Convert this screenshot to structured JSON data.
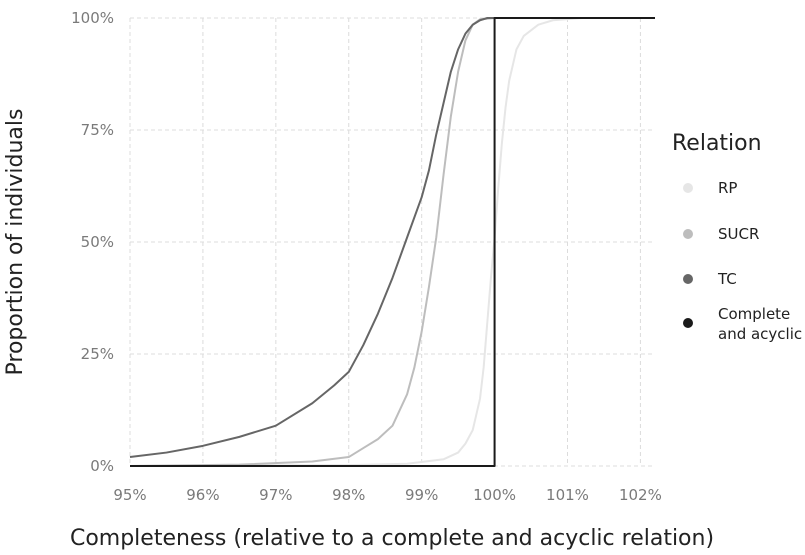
{
  "chart_data": {
    "type": "line",
    "title": "",
    "xlabel": "Completeness (relative to a complete and acyclic relation)",
    "ylabel": "Proportion of individuals",
    "xlim": [
      95,
      102.2
    ],
    "ylim": [
      0,
      100
    ],
    "x_ticks": [
      95,
      96,
      97,
      98,
      99,
      100,
      101,
      102
    ],
    "x_tick_labels": [
      "95%",
      "96%",
      "97%",
      "98%",
      "99%",
      "100%",
      "101%",
      "102%"
    ],
    "y_ticks": [
      0,
      25,
      50,
      75,
      100
    ],
    "y_tick_labels": [
      "0%",
      "25%",
      "50%",
      "75%",
      "100%"
    ],
    "grid": true,
    "legend": {
      "title": "Relation",
      "placement": "right",
      "entries": [
        {
          "label_lines": [
            "RP"
          ],
          "color": "#e6e6e6"
        },
        {
          "label_lines": [
            "SUCR"
          ],
          "color": "#bdbdbd"
        },
        {
          "label_lines": [
            "TC"
          ],
          "color": "#666666"
        },
        {
          "label_lines": [
            "Complete",
            "and acyclic"
          ],
          "color": "#1a1a1a"
        }
      ]
    },
    "series": [
      {
        "key": "RP",
        "color": "#e6e6e6",
        "points": [
          [
            95,
            0
          ],
          [
            98,
            0.2
          ],
          [
            98.8,
            0.5
          ],
          [
            99.3,
            1.5
          ],
          [
            99.5,
            3
          ],
          [
            99.6,
            5
          ],
          [
            99.7,
            8
          ],
          [
            99.8,
            15
          ],
          [
            99.85,
            22
          ],
          [
            99.9,
            32
          ],
          [
            99.95,
            42
          ],
          [
            100,
            51
          ],
          [
            100.05,
            62
          ],
          [
            100.1,
            72
          ],
          [
            100.15,
            80
          ],
          [
            100.2,
            86
          ],
          [
            100.3,
            93
          ],
          [
            100.4,
            96
          ],
          [
            100.6,
            98.5
          ],
          [
            100.8,
            99.5
          ],
          [
            101.2,
            100
          ],
          [
            102.2,
            100
          ]
        ]
      },
      {
        "key": "SUCR",
        "color": "#bdbdbd",
        "points": [
          [
            95,
            0
          ],
          [
            96.5,
            0.3
          ],
          [
            97.5,
            1
          ],
          [
            98,
            2
          ],
          [
            98.2,
            4
          ],
          [
            98.4,
            6
          ],
          [
            98.6,
            9
          ],
          [
            98.8,
            16
          ],
          [
            98.9,
            22
          ],
          [
            99,
            30
          ],
          [
            99.1,
            40
          ],
          [
            99.2,
            51
          ],
          [
            99.3,
            65
          ],
          [
            99.4,
            78
          ],
          [
            99.5,
            88
          ],
          [
            99.6,
            95
          ],
          [
            99.7,
            98.5
          ],
          [
            99.8,
            99.7
          ],
          [
            100,
            100
          ],
          [
            102.2,
            100
          ]
        ]
      },
      {
        "key": "TC",
        "color": "#666666",
        "points": [
          [
            95,
            2
          ],
          [
            95.5,
            3
          ],
          [
            96,
            4.5
          ],
          [
            96.5,
            6.5
          ],
          [
            97,
            9
          ],
          [
            97.5,
            14
          ],
          [
            97.8,
            18
          ],
          [
            98,
            21
          ],
          [
            98.2,
            27
          ],
          [
            98.4,
            34
          ],
          [
            98.6,
            42
          ],
          [
            98.8,
            51
          ],
          [
            99,
            60
          ],
          [
            99.1,
            66
          ],
          [
            99.2,
            74
          ],
          [
            99.3,
            81
          ],
          [
            99.4,
            88
          ],
          [
            99.5,
            93
          ],
          [
            99.6,
            96.5
          ],
          [
            99.7,
            98.5
          ],
          [
            99.8,
            99.5
          ],
          [
            99.9,
            100
          ],
          [
            102.2,
            100
          ]
        ]
      },
      {
        "key": "Complete and acyclic",
        "color": "#1a1a1a",
        "points": [
          [
            95,
            0
          ],
          [
            100,
            0
          ],
          [
            100,
            100
          ],
          [
            102.2,
            100
          ]
        ]
      }
    ]
  }
}
